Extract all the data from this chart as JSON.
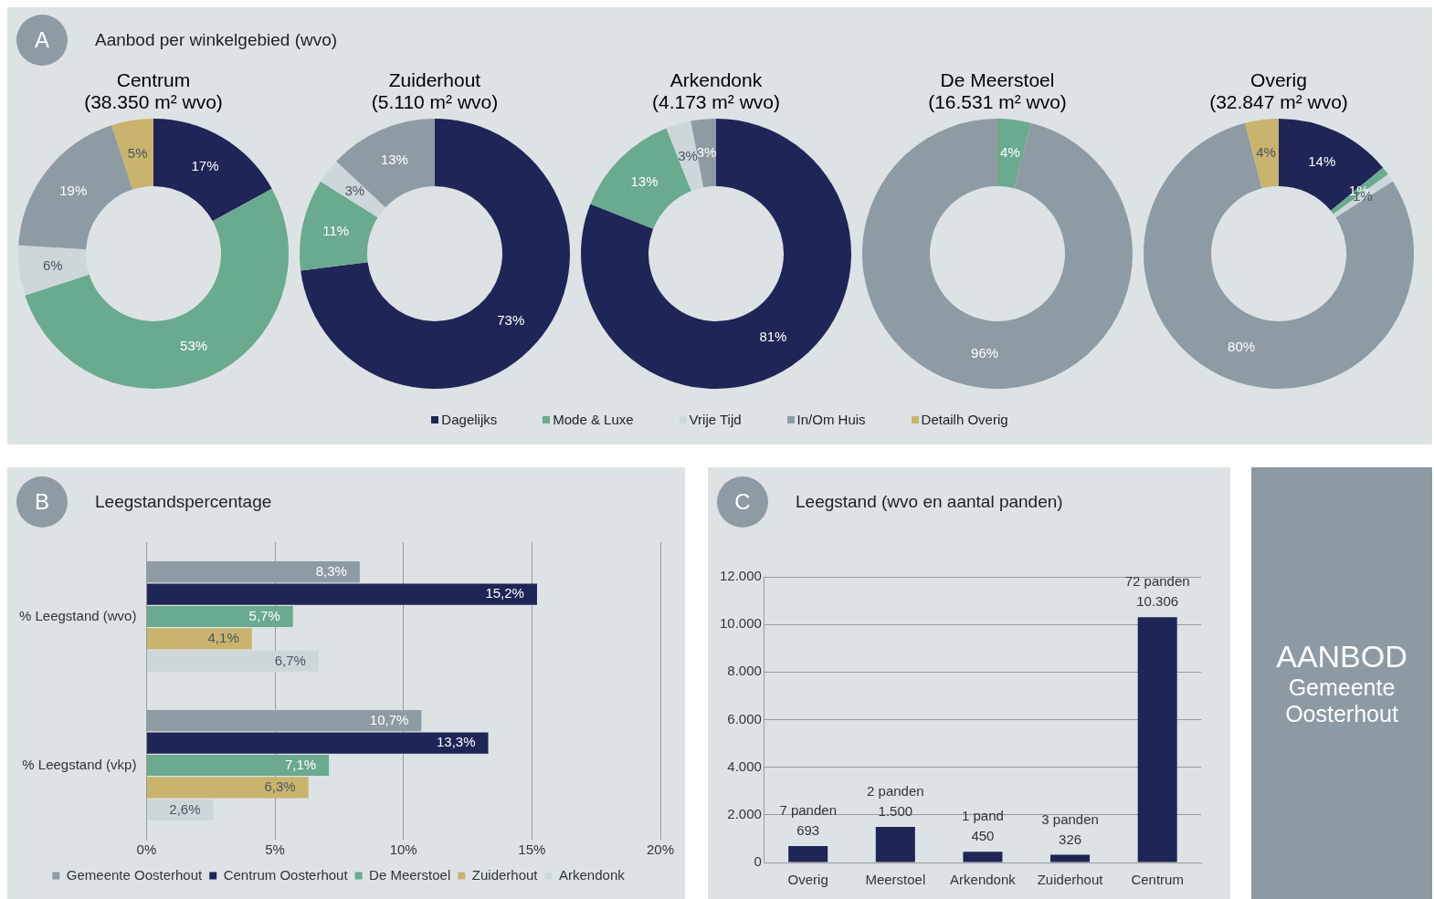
{
  "chart_data": [
    {
      "type": "donut",
      "title": "Centrum",
      "subtitle": "(38.350 m² wvo)",
      "annotations": [
        "A",
        "Aanbod per winkelgebied (wvo)"
      ],
      "legend": "bottom",
      "categories": [
        "Dagelijks",
        "Mode & Luxe",
        "Vrije Tijd",
        "In/Om Huis",
        "Detailh Overig"
      ],
      "values": [
        17,
        53,
        6,
        19,
        5
      ],
      "value_labels": [
        "17%",
        "53%",
        "6%",
        "19%",
        "5%"
      ],
      "colors": [
        "#1f2556",
        "#6aaa8e",
        "#cdd7d9",
        "#8f9ba3",
        "#c9b46e"
      ]
    },
    {
      "type": "donut",
      "title": "Zuiderhout",
      "subtitle": "(5.110 m² wvo)",
      "categories": [
        null,
        null,
        null,
        null,
        null
      ],
      "values": [
        73,
        11,
        3,
        13,
        0
      ],
      "value_labels": [
        "73%",
        "11%",
        "3%",
        "13%",
        null
      ],
      "colors": [
        "#1f2556",
        "#6aaa8e",
        "#cdd7d9",
        "#8f9ba3",
        "#c9b46e"
      ]
    },
    {
      "type": "donut",
      "title": "Arkendonk",
      "subtitle": "(4.173 m² wvo)",
      "categories": [
        null,
        null,
        null,
        null,
        null
      ],
      "values": [
        81,
        13,
        3,
        3,
        0
      ],
      "value_labels": [
        "81%",
        "13%",
        "3%",
        "3%",
        null
      ],
      "colors": [
        "#1f2556",
        "#6aaa8e",
        "#cdd7d9",
        "#8f9ba3",
        "#c9b46e"
      ]
    },
    {
      "type": "donut",
      "title": "De Meerstoel",
      "subtitle": "(16.531 m² wvo)",
      "categories": [
        null,
        null,
        null,
        null,
        null
      ],
      "values": [
        0,
        4,
        0,
        96,
        0
      ],
      "value_labels": [
        null,
        "4%",
        null,
        "96%",
        null
      ],
      "colors": [
        "#1f2556",
        "#6aaa8e",
        "#cdd7d9",
        "#8f9ba3",
        "#c9b46e"
      ]
    },
    {
      "type": "donut",
      "title": "Overig",
      "subtitle": "(32.847 m² wvo)",
      "categories": [
        null,
        null,
        null,
        null,
        null
      ],
      "values": [
        14,
        1,
        1,
        80,
        4
      ],
      "value_labels": [
        "14%",
        "1%",
        "1%",
        "80%",
        "4%"
      ],
      "colors": [
        "#1f2556",
        "#6aaa8e",
        "#cdd7d9",
        "#8f9ba3",
        "#c9b46e"
      ]
    },
    {
      "type": "bar",
      "orientation": "horizontal",
      "title": "Leegstandspercentage",
      "annotations": [
        "B"
      ],
      "categories": [
        "% Leegstand (wvo)",
        "% Leegstand (vkp)"
      ],
      "xlim": [
        0,
        20
      ],
      "xticks": [
        {
          "value": 0,
          "label": "0%"
        },
        {
          "value": 5,
          "label": "5%"
        },
        {
          "value": 10,
          "label": "10%"
        },
        {
          "value": 15,
          "label": "15%"
        },
        {
          "value": 20,
          "label": "20%"
        }
      ],
      "grid": "x",
      "legend": "bottom",
      "series": [
        {
          "name": "Gemeente Oosterhout",
          "color": "#8f9ba3",
          "values": [
            8.3,
            10.7
          ],
          "value_labels": [
            "8,3%",
            "10,7%"
          ]
        },
        {
          "name": "Centrum Oosterhout",
          "color": "#1f2556",
          "values": [
            15.2,
            13.3
          ],
          "value_labels": [
            "15,2%",
            "13,3%"
          ]
        },
        {
          "name": "De Meerstoel",
          "color": "#6aaa8e",
          "values": [
            5.7,
            7.1
          ],
          "value_labels": [
            "5,7%",
            "7,1%"
          ]
        },
        {
          "name": "Zuiderhout",
          "color": "#c9b46e",
          "values": [
            4.1,
            6.3
          ],
          "value_labels": [
            "4,1%",
            "6,3%"
          ]
        },
        {
          "name": "Arkendonk",
          "color": "#cdd7d9",
          "values": [
            6.7,
            2.6
          ],
          "value_labels": [
            "6,7%",
            "2,6%"
          ]
        }
      ]
    },
    {
      "type": "bar",
      "title": "Leegstand (wvo en aantal panden)",
      "annotations": [
        "C",
        {
          "text": "7 panden",
          "x": "Overig",
          "y": 693
        },
        {
          "text": "2 panden",
          "x": "Meerstoel",
          "y": 1500
        },
        {
          "text": "1 pand",
          "x": "Arkendonk",
          "y": 450
        },
        {
          "text": "3 panden",
          "x": "Zuiderhout",
          "y": 326
        },
        {
          "text": "72 panden",
          "x": "Centrum",
          "y": 10306
        }
      ],
      "categories": [
        "Overig",
        "Meerstoel",
        "Arkendonk",
        "Zuiderhout",
        "Centrum"
      ],
      "values": [
        693,
        1500,
        450,
        326,
        10306
      ],
      "value_labels": [
        "693",
        "1.500",
        "450",
        "326",
        "10.306"
      ],
      "color": "#1f2556",
      "ylim": [
        0,
        12000
      ],
      "yticks": [
        {
          "value": 0,
          "label": "0"
        },
        {
          "value": 2000,
          "label": "2.000"
        },
        {
          "value": 4000,
          "label": "4.000"
        },
        {
          "value": 6000,
          "label": "6.000"
        },
        {
          "value": 8000,
          "label": "8.000"
        },
        {
          "value": 10000,
          "label": "10.000"
        },
        {
          "value": 12000,
          "label": "12.000"
        }
      ],
      "grid": "y"
    },
    {
      "type": "other",
      "title": "AANBOD",
      "subtitle": "Gemeente Oosterhout"
    }
  ]
}
